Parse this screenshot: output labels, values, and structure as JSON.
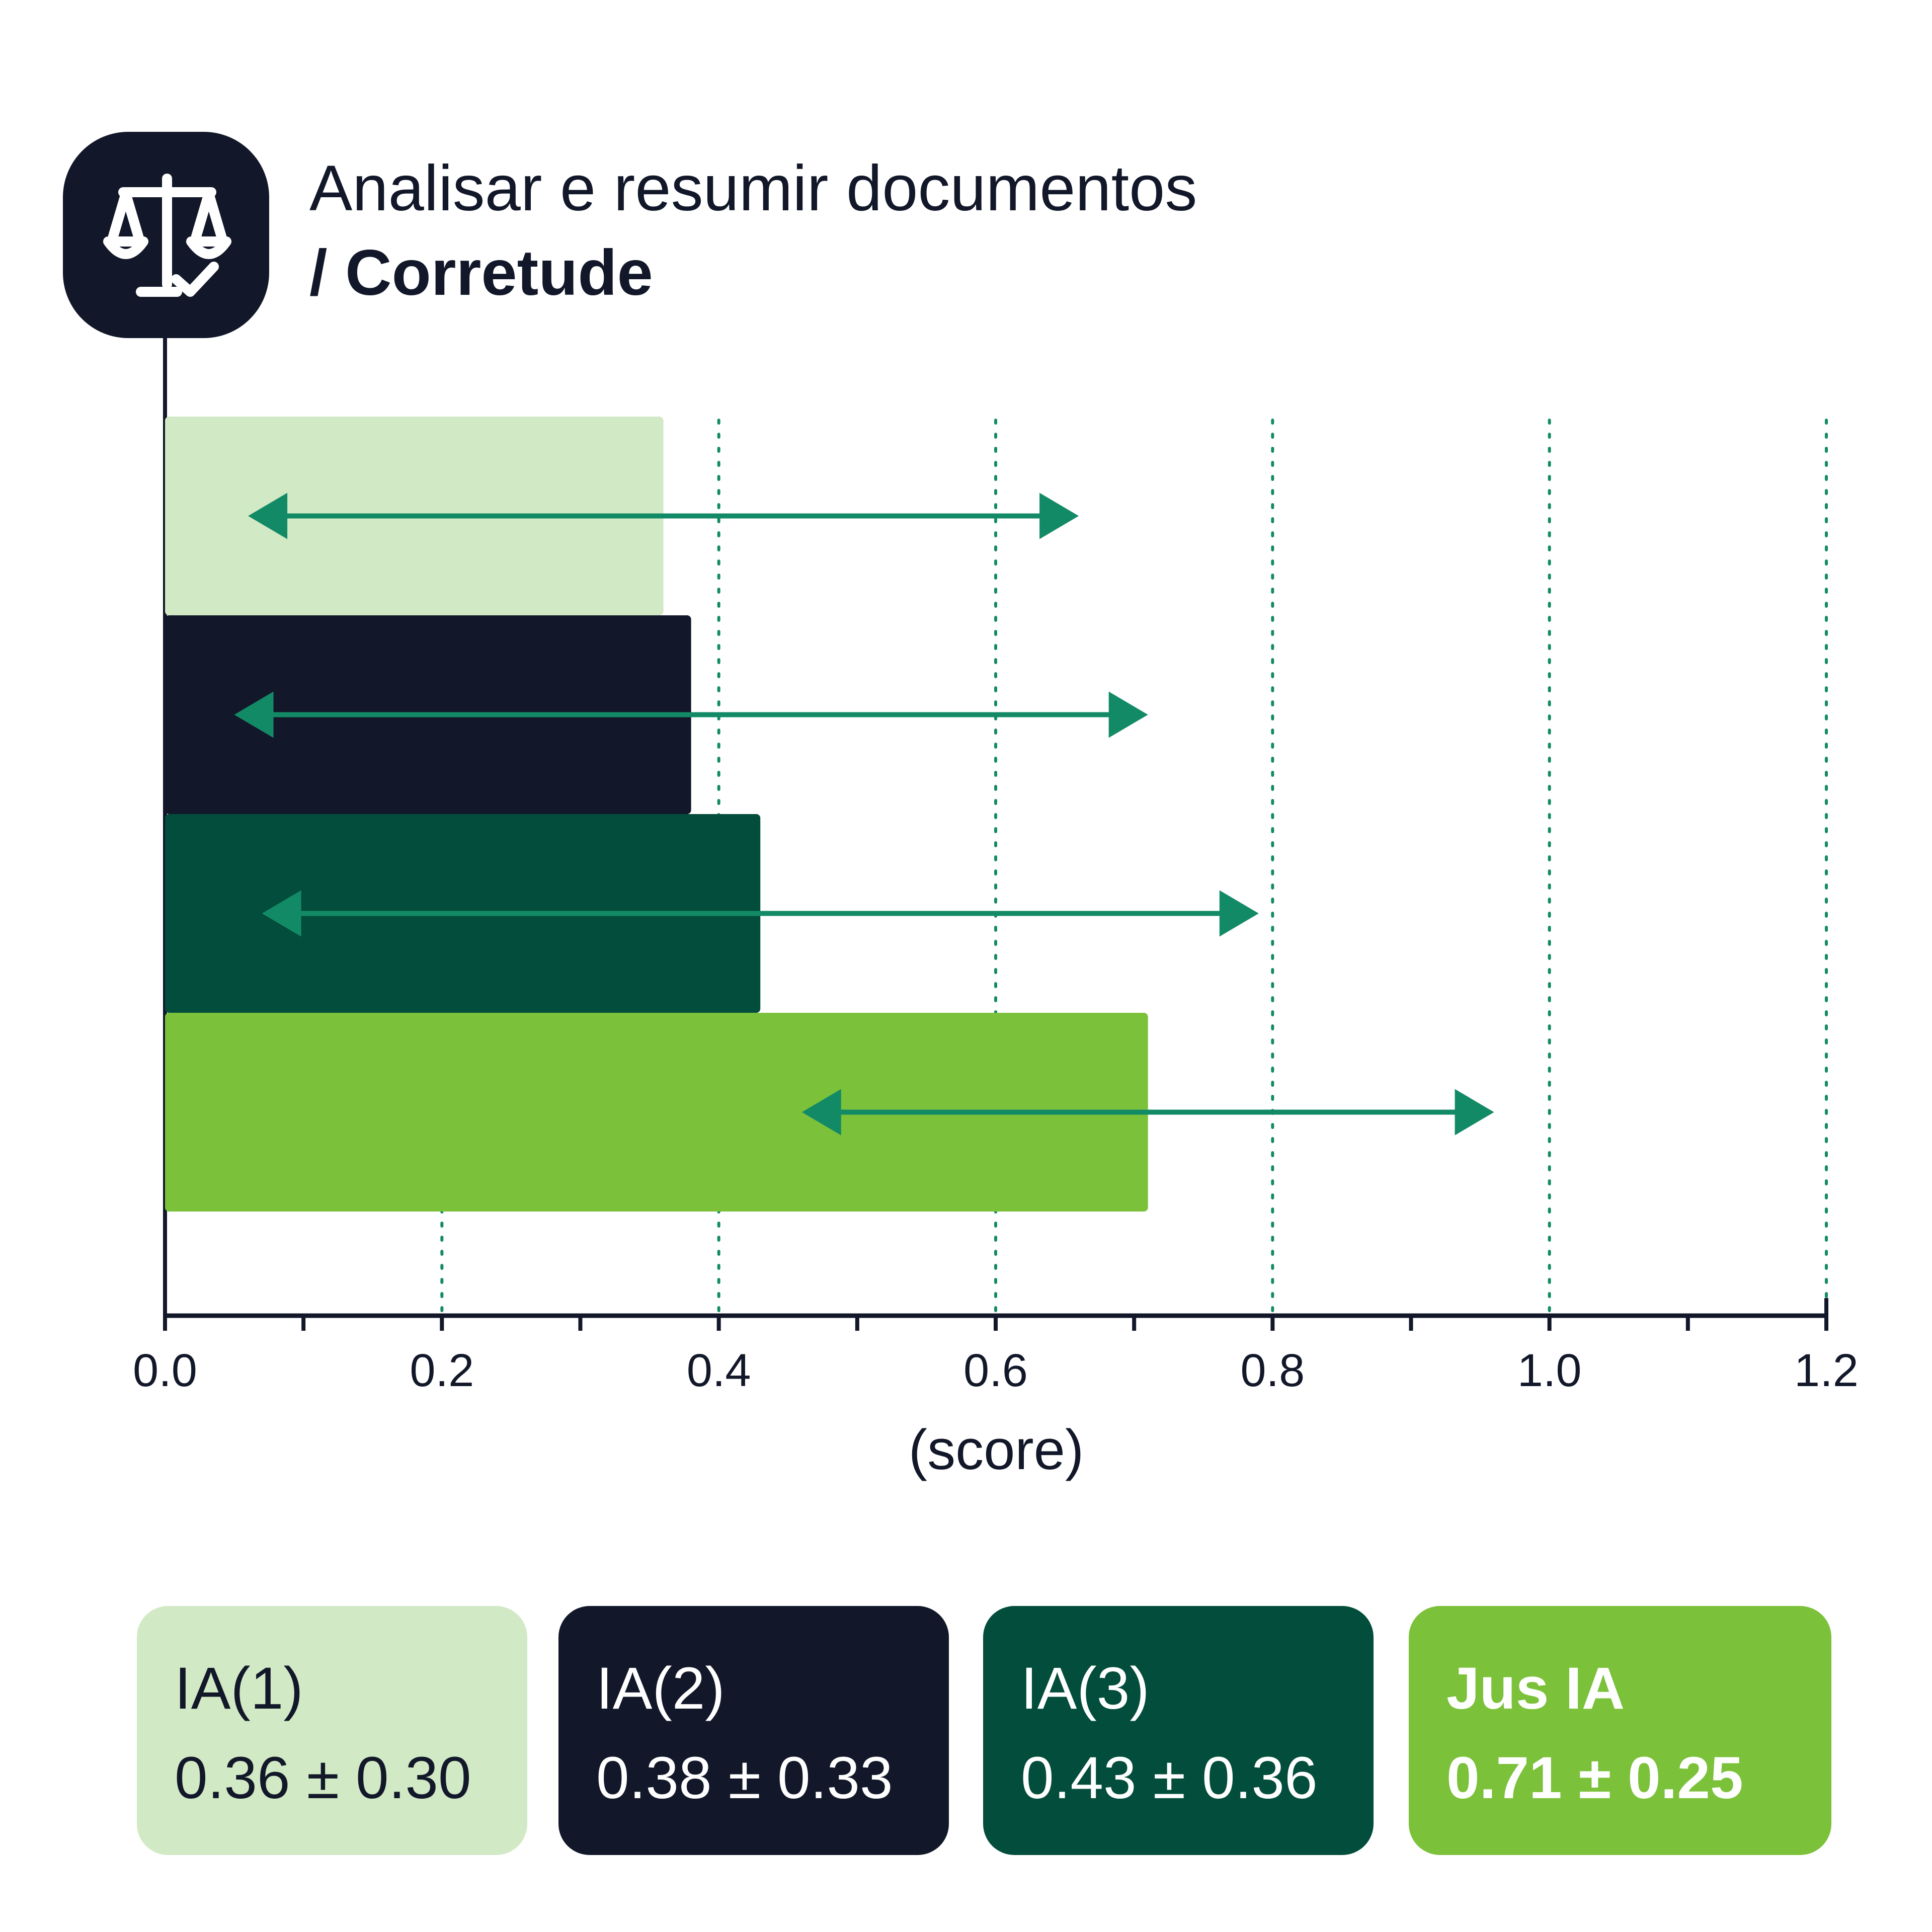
{
  "header": {
    "title": "Analisar e resumir documentos",
    "subtitle": "/ Corretude",
    "icon": "scales-check-icon"
  },
  "colors": {
    "ink": "#121829",
    "arrow": "#138a66",
    "grid": "#138a66",
    "series": [
      "#d1e9c4",
      "#121829",
      "#024d3b",
      "#7bc13a"
    ]
  },
  "chart_data": {
    "type": "bar",
    "orientation": "horizontal",
    "categories": [
      "IA(1)",
      "IA(2)",
      "IA(3)",
      "Jus IA"
    ],
    "values": [
      0.36,
      0.38,
      0.43,
      0.71
    ],
    "errors": [
      0.3,
      0.33,
      0.36,
      0.25
    ],
    "xlabel": "(score)",
    "xlim": [
      0,
      1.2
    ],
    "xticks": [
      "0.0",
      "0.2",
      "0.4",
      "0.6",
      "0.8",
      "1.0",
      "1.2"
    ],
    "xtick_values": [
      0,
      0.2,
      0.4,
      0.6,
      0.8,
      1.0,
      1.2
    ],
    "minor_tick_step": 0.1,
    "grid": "vertical dotted",
    "bar_colors": [
      "#d1e9c4",
      "#121829",
      "#024d3b",
      "#7bc13a"
    ]
  },
  "legend": {
    "items": [
      {
        "label": "IA(1)",
        "value": "0.36 ± 0.30",
        "bg": "#d1e9c4",
        "fg": "#121829"
      },
      {
        "label": "IA(2)",
        "value": "0.38 ± 0.33",
        "bg": "#121829",
        "fg": "#ffffff"
      },
      {
        "label": "IA(3)",
        "value": "0.43 ± 0.36",
        "bg": "#024d3b",
        "fg": "#ffffff"
      },
      {
        "label": "Jus IA",
        "value": "0.71 ± 0.25",
        "bg": "#7bc13a",
        "fg": "#ffffff"
      }
    ]
  }
}
